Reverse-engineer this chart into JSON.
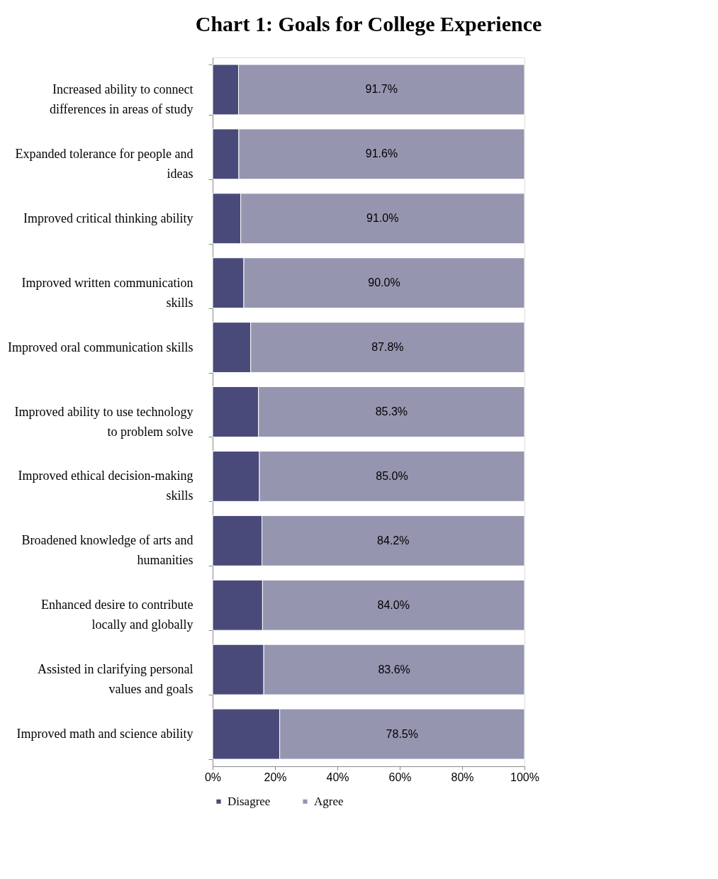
{
  "chart_data": {
    "type": "bar",
    "orientation": "horizontal",
    "stacked": true,
    "title": "Chart 1: Goals for College Experience",
    "categories": [
      "Increased ability to connect differences in areas of study",
      "Expanded tolerance for people and ideas",
      "Improved critical thinking ability",
      "Improved written communication skills",
      "Improved oral communication skills",
      "Improved ability to use technology to problem solve",
      "Improved ethical decision-making skills",
      "Broadened knowledge of arts and humanities",
      "Enhanced desire to contribute locally and globally",
      "Assisted in clarifying personal values and goals",
      "Improved math and science ability"
    ],
    "series": [
      {
        "name": "Disagree",
        "color": "#4a4a7a",
        "values": [
          8.3,
          8.4,
          9.0,
          10.0,
          12.2,
          14.7,
          15.0,
          15.8,
          16.0,
          16.4,
          21.5
        ]
      },
      {
        "name": "Agree",
        "color": "#9595b0",
        "values": [
          91.7,
          91.6,
          91.0,
          90.0,
          87.8,
          85.3,
          85.0,
          84.2,
          84.0,
          83.6,
          78.5
        ],
        "value_labels": [
          "91.7%",
          "91.6%",
          "91.0%",
          "90.0%",
          "87.8%",
          "85.3%",
          "85.0%",
          "84.2%",
          "84.0%",
          "83.6%",
          "78.5%"
        ]
      }
    ],
    "xlim": [
      0,
      100
    ],
    "xticks": [
      {
        "value": 0,
        "label": "0%"
      },
      {
        "value": 20,
        "label": "20%"
      },
      {
        "value": 40,
        "label": "40%"
      },
      {
        "value": 60,
        "label": "60%"
      },
      {
        "value": 80,
        "label": "80%"
      },
      {
        "value": 100,
        "label": "100%"
      }
    ],
    "grid": false,
    "legend": "bottom"
  }
}
